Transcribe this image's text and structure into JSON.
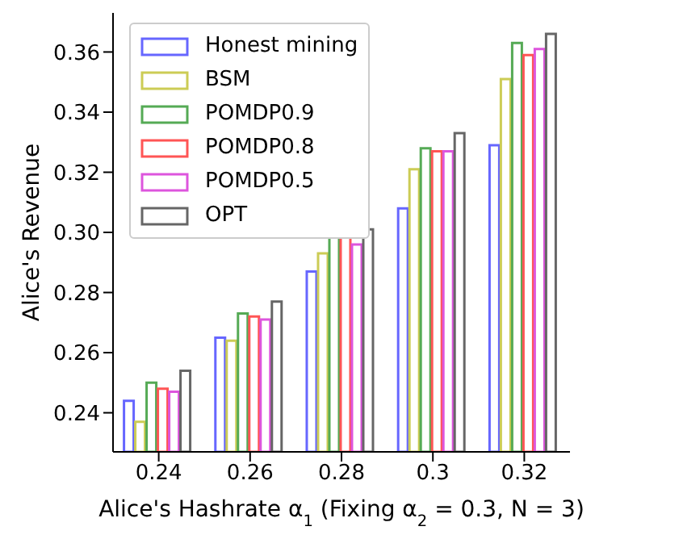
{
  "chart_data": {
    "type": "bar",
    "xlabel": "Alice's Hashrate α$_{1}$ (Fixing α$_{2}$ = 0.3, N = 3)",
    "ylabel": "Alice's Revenue",
    "categories": [
      "0.24",
      "0.26",
      "0.28",
      "0.3",
      "0.32"
    ],
    "series": [
      {
        "name": "Honest mining",
        "color": "#6666ff",
        "values": [
          0.244,
          0.265,
          0.287,
          0.308,
          0.329
        ]
      },
      {
        "name": "BSM",
        "color": "#cccc55",
        "values": [
          0.237,
          0.264,
          0.293,
          0.321,
          0.351
        ]
      },
      {
        "name": "POMDP0.9",
        "color": "#55aa55",
        "values": [
          0.25,
          0.273,
          0.299,
          0.328,
          0.363
        ]
      },
      {
        "name": "POMDP0.8",
        "color": "#ff5555",
        "values": [
          0.248,
          0.272,
          0.299,
          0.327,
          0.359
        ]
      },
      {
        "name": "POMDP0.5",
        "color": "#dd55dd",
        "values": [
          0.247,
          0.271,
          0.296,
          0.327,
          0.361
        ]
      },
      {
        "name": "OPT",
        "color": "#666666",
        "values": [
          0.254,
          0.277,
          0.301,
          0.333,
          0.366
        ]
      }
    ],
    "ylim": [
      0.227,
      0.373
    ],
    "yticks": [
      0.24,
      0.26,
      0.28,
      {
        "value": 0.3,
        "label": "0.30"
      },
      0.32,
      0.34,
      0.36
    ],
    "legend": "top left",
    "grid": false
  }
}
